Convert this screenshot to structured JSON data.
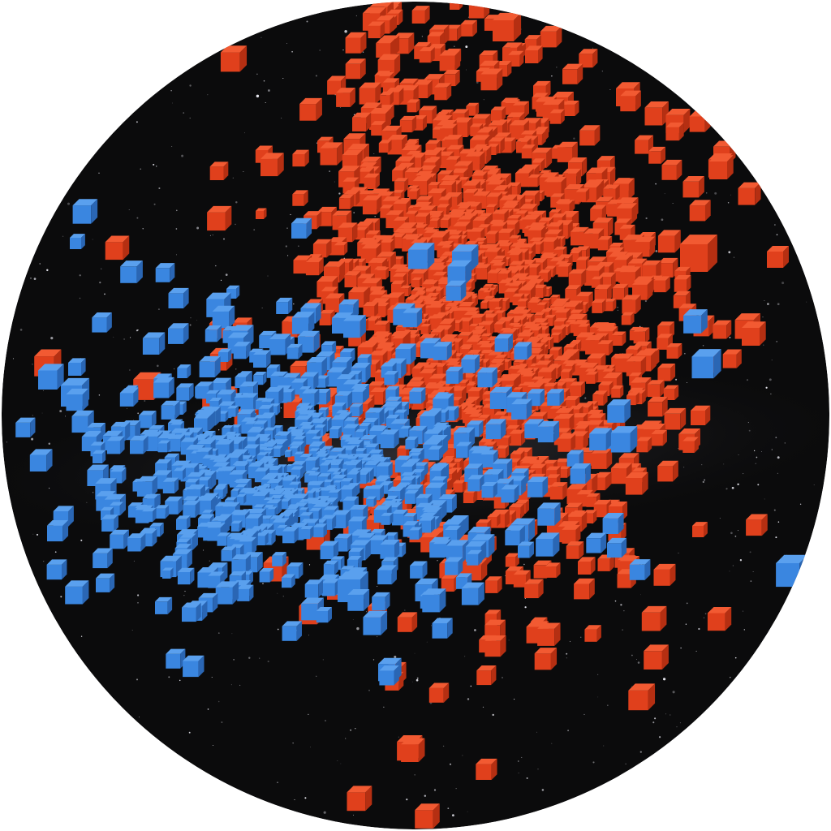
{
  "scene": {
    "background_color": "#ffffff",
    "dome_color": "#0b0b0c",
    "milky_way_color": "#3a3a40",
    "star_color": "#e8e8f0",
    "star_count": 900
  },
  "clusters": [
    {
      "name": "red-cluster",
      "color": "#e0401c",
      "shade": "#b52f12",
      "highlight": "#f25a32",
      "cube_count": 1400
    },
    {
      "name": "blue-cluster",
      "color": "#3a86e0",
      "shade": "#2a66b4",
      "highlight": "#5aa0ee",
      "cube_count": 750
    }
  ]
}
